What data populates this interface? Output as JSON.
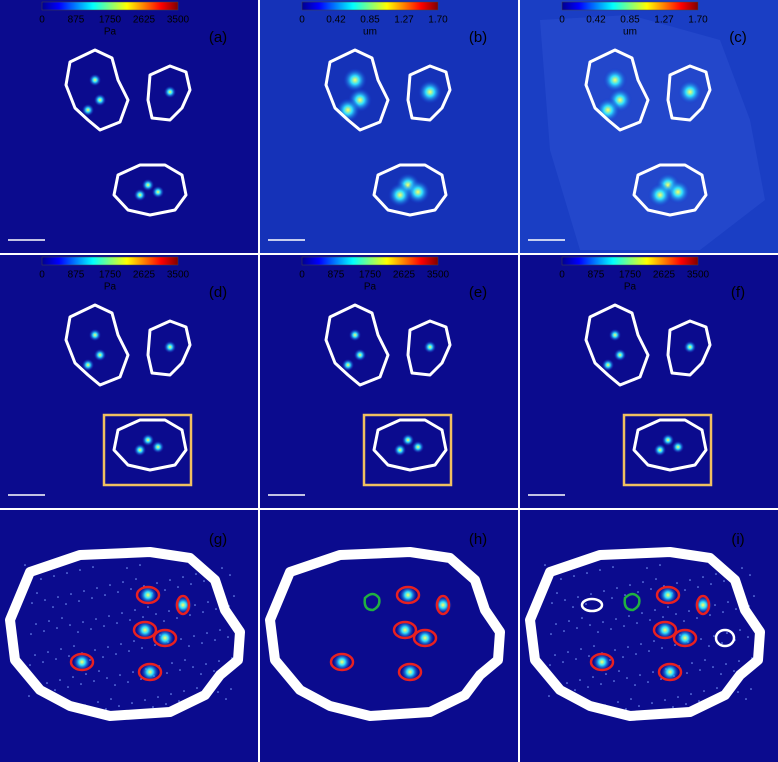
{
  "panels": [
    {
      "label": "(a)",
      "colorbar": {
        "ticks": [
          "0",
          "875",
          "1750",
          "2625",
          "3500"
        ],
        "unit": "Pa"
      }
    },
    {
      "label": "(b)",
      "colorbar": {
        "ticks": [
          "0",
          "0.42",
          "0.85",
          "1.27",
          "1.70"
        ],
        "unit": "um"
      }
    },
    {
      "label": "(c)",
      "colorbar": {
        "ticks": [
          "0",
          "0.42",
          "0.85",
          "1.27",
          "1.70"
        ],
        "unit": "um"
      }
    },
    {
      "label": "(d)",
      "colorbar": {
        "ticks": [
          "0",
          "875",
          "1750",
          "2625",
          "3500"
        ],
        "unit": "Pa"
      }
    },
    {
      "label": "(e)",
      "colorbar": {
        "ticks": [
          "0",
          "875",
          "1750",
          "2625",
          "3500"
        ],
        "unit": "Pa"
      }
    },
    {
      "label": "(f)",
      "colorbar": {
        "ticks": [
          "0",
          "875",
          "1750",
          "2625",
          "3500"
        ],
        "unit": "Pa"
      }
    },
    {
      "label": "(g)"
    },
    {
      "label": "(h)"
    },
    {
      "label": "(i)"
    }
  ]
}
